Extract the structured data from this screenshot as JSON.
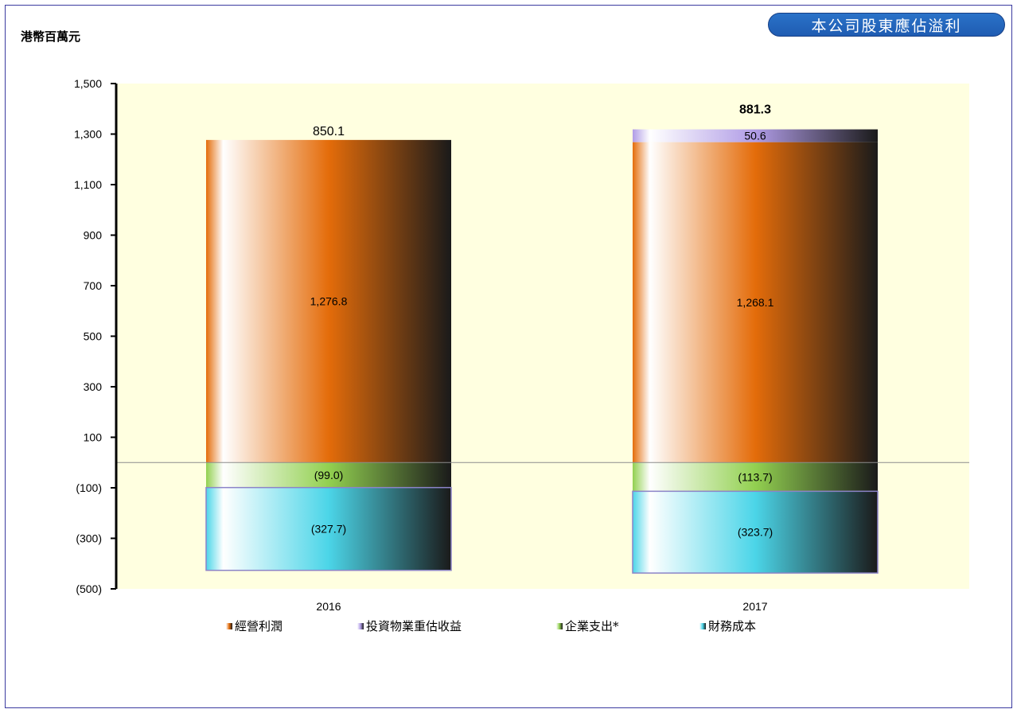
{
  "unit_label": "港幣百萬元",
  "title": "本公司股東應佔溢利",
  "colors": {
    "plot_bg": "#ffffe0",
    "operating": "#e46c0a",
    "revaluation": "#b09ce6",
    "corporate": "#92d050",
    "finance": "#4bd5e8"
  },
  "legend": [
    {
      "label": "經營利潤",
      "color_key": "operating"
    },
    {
      "label": "投資物業重估收益",
      "color_key": "revaluation"
    },
    {
      "label": "企業支出*",
      "color_key": "corporate"
    },
    {
      "label": "財務成本",
      "color_key": "finance"
    }
  ],
  "chart_data": {
    "type": "bar",
    "stacked": true,
    "title": "本公司股東應佔溢利",
    "ylabel": "港幣百萬元",
    "ylim": [
      -500,
      1500
    ],
    "yticks": [
      1500,
      1300,
      1100,
      900,
      700,
      500,
      300,
      100,
      -100,
      -300,
      -500
    ],
    "ytick_labels": [
      "1,500",
      "1,300",
      "1,100",
      "900",
      "700",
      "500",
      "300",
      "100",
      "(100)",
      "(300)",
      "(500)"
    ],
    "categories": [
      "2016",
      "2017"
    ],
    "series": [
      {
        "name": "經營利潤",
        "values": [
          1276.8,
          1268.1
        ],
        "labels": [
          "1,276.8",
          "1,268.1"
        ]
      },
      {
        "name": "投資物業重估收益",
        "values": [
          0,
          50.6
        ],
        "labels": [
          "",
          "50.6"
        ]
      },
      {
        "name": "企業支出*",
        "values": [
          -99.0,
          -113.7
        ],
        "labels": [
          "(99.0)",
          "(113.7)"
        ]
      },
      {
        "name": "財務成本",
        "values": [
          -327.7,
          -323.7
        ],
        "labels": [
          "(327.7)",
          "(323.7)"
        ]
      }
    ],
    "totals": [
      850.1,
      881.3
    ],
    "total_labels": [
      "850.1",
      "881.3"
    ],
    "legend_position": "bottom"
  }
}
